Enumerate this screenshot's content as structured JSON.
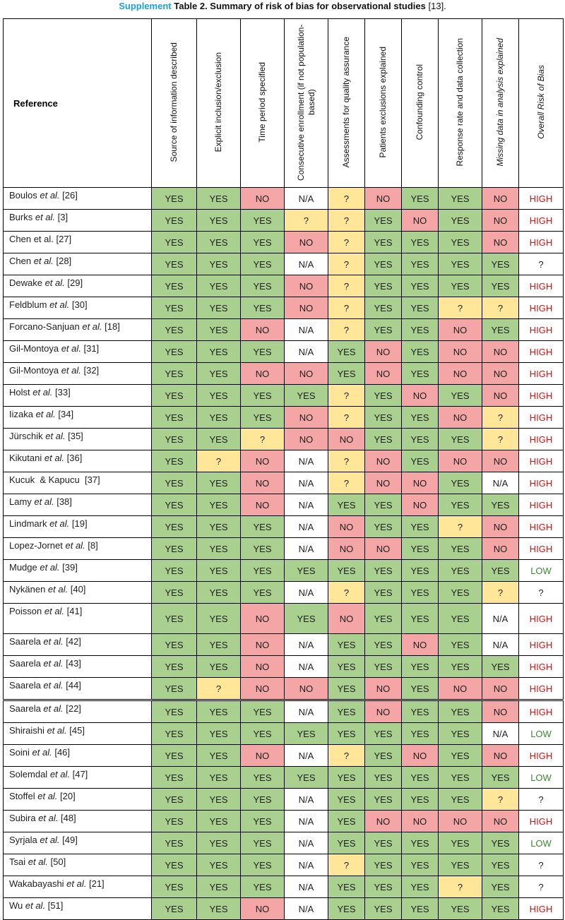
{
  "caption": {
    "label": "Supplement",
    "title": "Table 2. Summary of risk of bias for observational studies",
    "ref": "[13]."
  },
  "colors": {
    "yes": "#a9d08e",
    "no": "#f4a5a5",
    "unknown": "#ffe699",
    "na": "#ffffff",
    "high": "#e01010",
    "low": "#3b8a2e"
  },
  "headers": {
    "reference": "Reference",
    "columns": [
      "Source of information described",
      "Explicit inclusion/exclusion",
      "Time period specified",
      "Consecutive enrollment (if not population-based)",
      "Assessments for quality assurance",
      "Patients exclusions explained",
      "Confounding control",
      "Response rate and data collection",
      "Missing data in analysis explained",
      "Overall Risk of Bias"
    ]
  },
  "rows": [
    {
      "author": "Boulos",
      "etal": " et al.",
      "ref": " [26]",
      "v": [
        "YES",
        "YES",
        "NO",
        "N/A",
        "?",
        "NO",
        "YES",
        "YES",
        "NO",
        "HIGH"
      ]
    },
    {
      "author": "Burks",
      "etal": " et al.",
      "ref": " [3]",
      "v": [
        "YES",
        "YES",
        "YES",
        "?",
        "?",
        "YES",
        "NO",
        "YES",
        "NO",
        "HIGH"
      ]
    },
    {
      "author": "Chen et al.",
      "etal": "",
      "ref": " [27]",
      "v": [
        "YES",
        "YES",
        "YES",
        "NO",
        "?",
        "YES",
        "YES",
        "YES",
        "NO",
        "HIGH"
      ]
    },
    {
      "author": "Chen",
      "etal": " et al.",
      "ref": " [28]",
      "v": [
        "YES",
        "YES",
        "YES",
        "N/A",
        "?",
        "YES",
        "YES",
        "YES",
        "YES",
        "?"
      ]
    },
    {
      "author": "Dewake",
      "etal": " et al.",
      "ref": " [29]",
      "v": [
        "YES",
        "YES",
        "YES",
        "NO",
        "?",
        "YES",
        "YES",
        "YES",
        "YES",
        "HIGH"
      ]
    },
    {
      "author": "Feldblum",
      "etal": " et al.",
      "ref": " [30]",
      "v": [
        "YES",
        "YES",
        "YES",
        "NO",
        "?",
        "YES",
        "YES",
        "?",
        "?",
        "HIGH"
      ]
    },
    {
      "author": "Forcano-Sanjuan",
      "etal": " et al.",
      "ref": " [18]",
      "v": [
        "YES",
        "YES",
        "NO",
        "N/A",
        "?",
        "YES",
        "YES",
        "NO",
        "YES",
        "HIGH"
      ]
    },
    {
      "author": "Gil-Montoya",
      "etal": " et al.",
      "ref": " [31]",
      "v": [
        "YES",
        "YES",
        "YES",
        "N/A",
        "YES",
        "NO",
        "YES",
        "NO",
        "NO",
        "HIGH"
      ]
    },
    {
      "author": "Gil-Montoya",
      "etal": " et al.",
      "ref": " [32]",
      "v": [
        "YES",
        "YES",
        "NO",
        "NO",
        "YES",
        "NO",
        "YES",
        "NO",
        "NO",
        "HIGH"
      ]
    },
    {
      "author": "Holst",
      "etal": " et al.",
      "ref": " [33]",
      "v": [
        "YES",
        "YES",
        "YES",
        "YES",
        "?",
        "YES",
        "NO",
        "YES",
        "NO",
        "HIGH"
      ]
    },
    {
      "author": "Iizaka",
      "etal": " et al.",
      "ref": " [34]",
      "v": [
        "YES",
        "YES",
        "YES",
        "NO",
        "?",
        "YES",
        "YES",
        "NO",
        "?",
        "HIGH"
      ]
    },
    {
      "author": "Jürschik",
      "etal": " et al.",
      "ref": " [35]",
      "v": [
        "YES",
        "YES",
        "?",
        "NO",
        "NO",
        "YES",
        "YES",
        "YES",
        "?",
        "HIGH"
      ]
    },
    {
      "author": "Kikutani",
      "etal": " et al.",
      "ref": " [36]",
      "v": [
        "YES",
        "?",
        "NO",
        "N/A",
        "?",
        "NO",
        "YES",
        "NO",
        "NO",
        "HIGH"
      ]
    },
    {
      "author": "Kucuk  & Kapucu",
      "etal": "",
      "ref": "  [37]",
      "v": [
        "YES",
        "YES",
        "NO",
        "N/A",
        "?",
        "NO",
        "NO",
        "YES",
        "N/A",
        "HIGH"
      ]
    },
    {
      "author": "Lamy",
      "etal": " et al.",
      "ref": " [38]",
      "v": [
        "YES",
        "YES",
        "NO",
        "N/A",
        "YES",
        "YES",
        "NO",
        "YES",
        "YES",
        "HIGH"
      ]
    },
    {
      "author": "Lindmark",
      "etal": " et al.",
      "ref": " [19]",
      "v": [
        "YES",
        "YES",
        "YES",
        "N/A",
        "NO",
        "YES",
        "YES",
        "?",
        "NO",
        "HIGH"
      ]
    },
    {
      "author": "Lopez-Jornet",
      "etal": " et al.",
      "ref": " [8]",
      "v": [
        "YES",
        "YES",
        "YES",
        "N/A",
        "NO",
        "NO",
        "YES",
        "YES",
        "NO",
        "HIGH"
      ]
    },
    {
      "author": "Mudge",
      "etal": " et al.",
      "ref": " [39]",
      "v": [
        "YES",
        "YES",
        "YES",
        "YES",
        "YES",
        "YES",
        "YES",
        "YES",
        "YES",
        "LOW"
      ]
    },
    {
      "author": "Nykänen",
      "etal": " et al.",
      "ref": " [40]",
      "v": [
        "YES",
        "YES",
        "YES",
        "N/A",
        "?",
        "YES",
        "YES",
        "YES",
        "?",
        "?"
      ]
    },
    {
      "author": "Poisson",
      "etal": " et al.",
      "ref": " [41]",
      "tall": true,
      "v": [
        "YES",
        "YES",
        "NO",
        "YES",
        "NO",
        "YES",
        "YES",
        "YES",
        "N/A",
        "HIGH"
      ]
    },
    {
      "author": "Saarela",
      "etal": " et al.",
      "ref": " [42]",
      "v": [
        "YES",
        "YES",
        "NO",
        "N/A",
        "YES",
        "YES",
        "NO",
        "YES",
        "N/A",
        "HIGH"
      ]
    },
    {
      "author": "Saarela",
      "etal": " et al.",
      "ref": " [43]",
      "v": [
        "YES",
        "YES",
        "NO",
        "N/A",
        "YES",
        "YES",
        "YES",
        "YES",
        "YES",
        "HIGH"
      ]
    },
    {
      "author": "Saarela",
      "etal": " et al.",
      "ref": " [44]",
      "v": [
        "YES",
        "?",
        "NO",
        "NO",
        "YES",
        "NO",
        "YES",
        "NO",
        "NO",
        "HIGH"
      ]
    },
    {
      "author": "Saarela",
      "etal": " et al.",
      "ref": " [22]",
      "gap": true,
      "v": [
        "YES",
        "YES",
        "YES",
        "N/A",
        "YES",
        "NO",
        "YES",
        "YES",
        "NO",
        "HIGH"
      ]
    },
    {
      "author": "Shiraishi",
      "etal": " et al.",
      "ref": " [45]",
      "v": [
        "YES",
        "YES",
        "YES",
        "YES",
        "YES",
        "YES",
        "YES",
        "YES",
        "N/A",
        "LOW"
      ]
    },
    {
      "author": "Soini",
      "etal": " et al.",
      "ref": " [46]",
      "v": [
        "YES",
        "YES",
        "NO",
        "N/A",
        "?",
        "YES",
        "NO",
        "YES",
        "NO",
        "HIGH"
      ]
    },
    {
      "author": "Solemdal",
      "etal": " et al.",
      "ref": " [47]",
      "v": [
        "YES",
        "YES",
        "YES",
        "YES",
        "YES",
        "YES",
        "YES",
        "YES",
        "YES",
        "LOW"
      ]
    },
    {
      "author": "Stoffel",
      "etal": " et al.",
      "ref": " [20]",
      "v": [
        "YES",
        "YES",
        "YES",
        "N/A",
        "YES",
        "YES",
        "YES",
        "YES",
        "?",
        "?"
      ]
    },
    {
      "author": "Subira",
      "etal": " et al.",
      "ref": " [48]",
      "v": [
        "YES",
        "YES",
        "YES",
        "N/A",
        "YES",
        "NO",
        "NO",
        "NO",
        "NO",
        "HIGH"
      ]
    },
    {
      "author": "Syrjala",
      "etal": " et al.",
      "ref": " [49]",
      "v": [
        "YES",
        "YES",
        "YES",
        "N/A",
        "YES",
        "YES",
        "YES",
        "YES",
        "YES",
        "LOW"
      ]
    },
    {
      "author": "Tsai",
      "etal": " et al.",
      "ref": " [50]",
      "v": [
        "YES",
        "YES",
        "YES",
        "N/A",
        "?",
        "YES",
        "YES",
        "YES",
        "YES",
        "?"
      ]
    },
    {
      "author": "Wakabayashi",
      "etal": " et al.",
      "ref": " [21]",
      "v": [
        "YES",
        "YES",
        "YES",
        "N/A",
        "YES",
        "YES",
        "YES",
        "?",
        "YES",
        "?"
      ]
    },
    {
      "author": "Wu",
      "etal": " et al.",
      "ref": " [51]",
      "v": [
        "YES",
        "YES",
        "NO",
        "N/A",
        "YES",
        "YES",
        "YES",
        "YES",
        "YES",
        "HIGH"
      ]
    }
  ]
}
